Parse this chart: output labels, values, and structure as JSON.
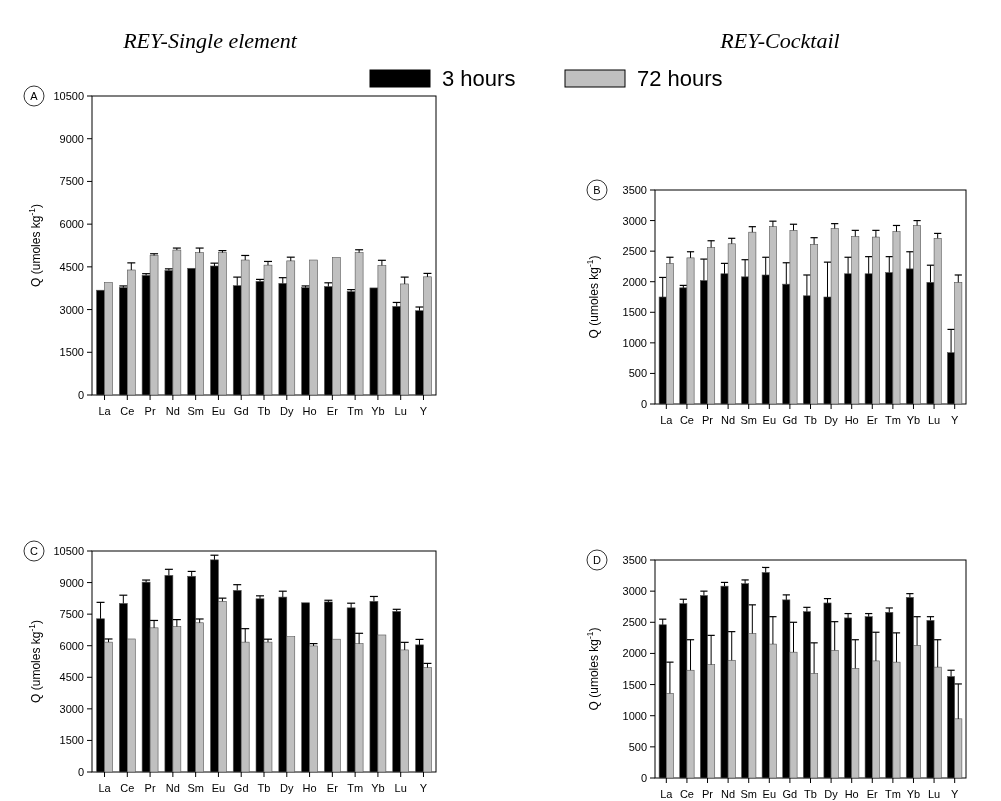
{
  "chart_data": [
    {
      "type": "bar",
      "title": "REY-Single element",
      "ylabel": "Q (umoles kg$^{-1}$)",
      "annotations": [
        "A"
      ],
      "legend": "top",
      "categories": [
        "La",
        "Ce",
        "Pr",
        "Nd",
        "Sm",
        "Eu",
        "Gd",
        "Tb",
        "Dy",
        "Ho",
        "Er",
        "Tm",
        "Yb",
        "Lu",
        "Y"
      ],
      "ylim": [
        0,
        10500
      ],
      "yticks": [
        0,
        1500,
        3000,
        4500,
        6000,
        7500,
        9000,
        10500
      ],
      "series": [
        {
          "name": "3 hours",
          "color": "#000000",
          "values": [
            3680,
            3770,
            4200,
            4370,
            4450,
            4530,
            3840,
            3990,
            3920,
            3770,
            3810,
            3630,
            3760,
            3110,
            2960
          ],
          "errors": [
            null,
            [
              3770,
              3830
            ],
            [
              4200,
              4260
            ],
            [
              4370,
              4430
            ],
            null,
            [
              4530,
              4630
            ],
            [
              3840,
              4140
            ],
            [
              3990,
              4060
            ],
            [
              3920,
              4120
            ],
            [
              3770,
              3830
            ],
            [
              3810,
              3940
            ],
            [
              3630,
              3700
            ],
            null,
            [
              3110,
              3250
            ],
            [
              2960,
              3090
            ]
          ]
        },
        {
          "name": "72 hours",
          "color": "#c0c0c0",
          "values": [
            3950,
            4390,
            4900,
            5090,
            5000,
            5000,
            4740,
            4560,
            4710,
            4740,
            4830,
            5000,
            4550,
            3900,
            4150
          ],
          "errors": [
            null,
            [
              4390,
              4640
            ],
            [
              4900,
              4960
            ],
            [
              5090,
              5160
            ],
            [
              5000,
              5160
            ],
            [
              5000,
              5070
            ],
            [
              4740,
              4900
            ],
            [
              4560,
              4690
            ],
            [
              4710,
              4840
            ],
            null,
            null,
            [
              5000,
              5100
            ],
            [
              4550,
              4730
            ],
            [
              3900,
              4140
            ],
            [
              4150,
              4270
            ]
          ]
        }
      ]
    },
    {
      "type": "bar",
      "title": "REY-Cocktail",
      "ylabel": "Q (umoles kg$^{-1}$)",
      "annotations": [
        "B"
      ],
      "categories": [
        "La",
        "Ce",
        "Pr",
        "Nd",
        "Sm",
        "Eu",
        "Gd",
        "Tb",
        "Dy",
        "Ho",
        "Er",
        "Tm",
        "Yb",
        "Lu",
        "Y"
      ],
      "ylim": [
        0,
        3500
      ],
      "yticks": [
        0,
        500,
        1000,
        1500,
        2000,
        2500,
        3000,
        3500
      ],
      "series": [
        {
          "color": "#000000",
          "values": [
            1750,
            1900,
            2020,
            2130,
            2080,
            2110,
            1960,
            1770,
            1750,
            2130,
            2130,
            2150,
            2210,
            1990,
            840
          ],
          "errors": [
            [
              1750,
              2070
            ],
            [
              1900,
              1940
            ],
            [
              2020,
              2370
            ],
            [
              2130,
              2300
            ],
            [
              2080,
              2360
            ],
            [
              2110,
              2400
            ],
            [
              1960,
              2310
            ],
            [
              1770,
              2110
            ],
            [
              1750,
              2320
            ],
            [
              2130,
              2400
            ],
            [
              2130,
              2410
            ],
            [
              2150,
              2410
            ],
            [
              2210,
              2490
            ],
            [
              1990,
              2270
            ],
            [
              840,
              1220
            ]
          ]
        },
        {
          "color": "#c0c0c0",
          "values": [
            2300,
            2390,
            2560,
            2620,
            2810,
            2900,
            2840,
            2610,
            2870,
            2740,
            2730,
            2820,
            2920,
            2710,
            1990
          ],
          "errors": [
            [
              2300,
              2400
            ],
            [
              2390,
              2490
            ],
            [
              2560,
              2670
            ],
            [
              2620,
              2710
            ],
            [
              2810,
              2900
            ],
            [
              2900,
              2990
            ],
            [
              2840,
              2940
            ],
            [
              2610,
              2720
            ],
            [
              2870,
              2950
            ],
            [
              2740,
              2840
            ],
            [
              2730,
              2840
            ],
            [
              2820,
              2920
            ],
            [
              2920,
              3000
            ],
            [
              2710,
              2790
            ],
            [
              1990,
              2110
            ]
          ]
        }
      ]
    },
    {
      "type": "bar",
      "ylabel": "Q (umoles kg$^{-1}$)",
      "annotations": [
        "C"
      ],
      "categories": [
        "La",
        "Ce",
        "Pr",
        "Nd",
        "Sm",
        "Eu",
        "Gd",
        "Tb",
        "Dy",
        "Ho",
        "Er",
        "Tm",
        "Yb",
        "Lu",
        "Y"
      ],
      "ylim": [
        0,
        10500
      ],
      "yticks": [
        0,
        1500,
        3000,
        4500,
        6000,
        7500,
        9000,
        10500
      ],
      "series": [
        {
          "color": "#000000",
          "values": [
            7280,
            8010,
            9020,
            9340,
            9300,
            10080,
            8630,
            8230,
            8310,
            8040,
            8080,
            7800,
            8110,
            7630,
            6040
          ],
          "errors": [
            [
              7280,
              8060
            ],
            [
              8010,
              8400
            ],
            [
              9020,
              9120
            ],
            [
              9340,
              9630
            ],
            [
              9300,
              9530
            ],
            [
              10080,
              10300
            ],
            [
              8630,
              8900
            ],
            [
              8230,
              8370
            ],
            [
              8310,
              8590
            ],
            null,
            [
              8080,
              8160
            ],
            [
              7800,
              8020
            ],
            [
              8110,
              8340
            ],
            [
              7630,
              7730
            ],
            [
              6040,
              6300
            ]
          ]
        },
        {
          "color": "#c0c0c0",
          "values": [
            6170,
            6320,
            6850,
            6910,
            7090,
            8110,
            6170,
            6170,
            6430,
            5990,
            6310,
            6100,
            6510,
            5800,
            4960
          ],
          "errors": [
            [
              6170,
              6320
            ],
            null,
            [
              6850,
              7200
            ],
            [
              6910,
              7240
            ],
            [
              7090,
              7270
            ],
            [
              8110,
              8260
            ],
            [
              6170,
              6810
            ],
            [
              6170,
              6310
            ],
            null,
            [
              5990,
              6100
            ],
            null,
            [
              6100,
              6590
            ],
            null,
            [
              5800,
              6160
            ],
            [
              4960,
              5160
            ]
          ]
        }
      ]
    },
    {
      "type": "bar",
      "ylabel": "Q (umoles kg$^{-1}$)",
      "annotations": [
        "D"
      ],
      "categories": [
        "La",
        "Ce",
        "Pr",
        "Nd",
        "Sm",
        "Eu",
        "Gd",
        "Tb",
        "Dy",
        "Ho",
        "Er",
        "Tm",
        "Yb",
        "Lu",
        "Y"
      ],
      "ylim": [
        0,
        3500
      ],
      "yticks": [
        0,
        500,
        1000,
        1500,
        2000,
        2500,
        3000,
        3500
      ],
      "series": [
        {
          "color": "#000000",
          "values": [
            2460,
            2800,
            2930,
            3080,
            3120,
            3300,
            2860,
            2670,
            2810,
            2570,
            2590,
            2660,
            2900,
            2530,
            1630
          ],
          "errors": [
            [
              2460,
              2550
            ],
            [
              2800,
              2870
            ],
            [
              2930,
              3000
            ],
            [
              3080,
              3140
            ],
            [
              3120,
              3180
            ],
            [
              3300,
              3380
            ],
            [
              2860,
              2940
            ],
            [
              2670,
              2740
            ],
            [
              2810,
              2880
            ],
            [
              2570,
              2640
            ],
            [
              2590,
              2640
            ],
            [
              2660,
              2730
            ],
            [
              2900,
              2960
            ],
            [
              2530,
              2590
            ],
            [
              1630,
              1730
            ]
          ]
        },
        {
          "color": "#c0c0c0",
          "values": [
            1360,
            1730,
            1820,
            1890,
            2320,
            2150,
            2020,
            1680,
            2050,
            1760,
            1880,
            1860,
            2130,
            1780,
            950
          ],
          "errors": [
            [
              1360,
              1860
            ],
            [
              1730,
              2220
            ],
            [
              1820,
              2290
            ],
            [
              1890,
              2350
            ],
            [
              2320,
              2780
            ],
            [
              2150,
              2590
            ],
            [
              2020,
              2500
            ],
            [
              1680,
              2170
            ],
            [
              2050,
              2510
            ],
            [
              1760,
              2220
            ],
            [
              1880,
              2340
            ],
            [
              1860,
              2330
            ],
            [
              2130,
              2590
            ],
            [
              1780,
              2220
            ],
            [
              950,
              1510
            ]
          ]
        }
      ]
    }
  ]
}
